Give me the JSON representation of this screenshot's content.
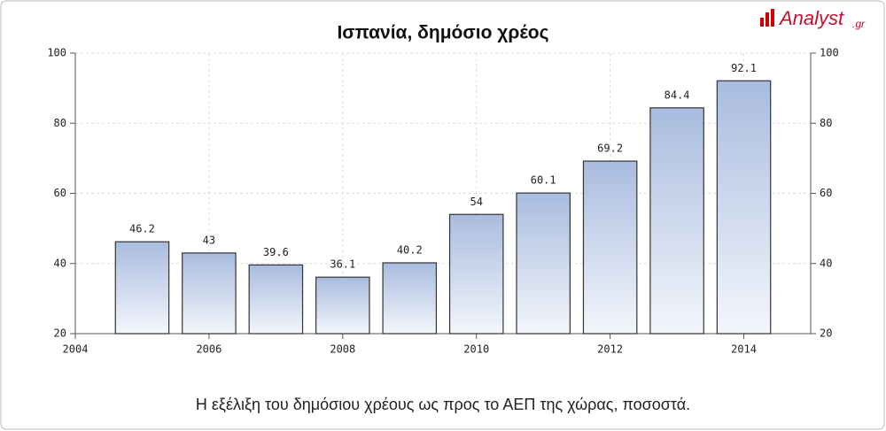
{
  "logo": {
    "name": "Analyst",
    "suffix": ".gr"
  },
  "chart_data": {
    "type": "bar",
    "title": "Ισπανία, δημόσιο χρέος",
    "caption": "Η εξέλιξη του δημόσιου χρέους ως προς το ΑΕΠ της χώρας, ποσοστά.",
    "x": [
      2005,
      2006,
      2007,
      2008,
      2009,
      2010,
      2011,
      2012,
      2013,
      2014
    ],
    "values": [
      46.2,
      43,
      39.6,
      36.1,
      40.2,
      54,
      60.1,
      69.2,
      84.4,
      92.1
    ],
    "color": "#a9bcdf",
    "xlim": [
      2004,
      2015
    ],
    "xticks": [
      2004,
      2006,
      2008,
      2010,
      2012,
      2014
    ],
    "ylim": [
      20,
      100
    ],
    "yticks": [
      20,
      40,
      60,
      80,
      100
    ],
    "y2lim": [
      20,
      100
    ],
    "y2ticks": [
      20,
      40,
      60,
      80,
      100
    ],
    "grid": true
  }
}
